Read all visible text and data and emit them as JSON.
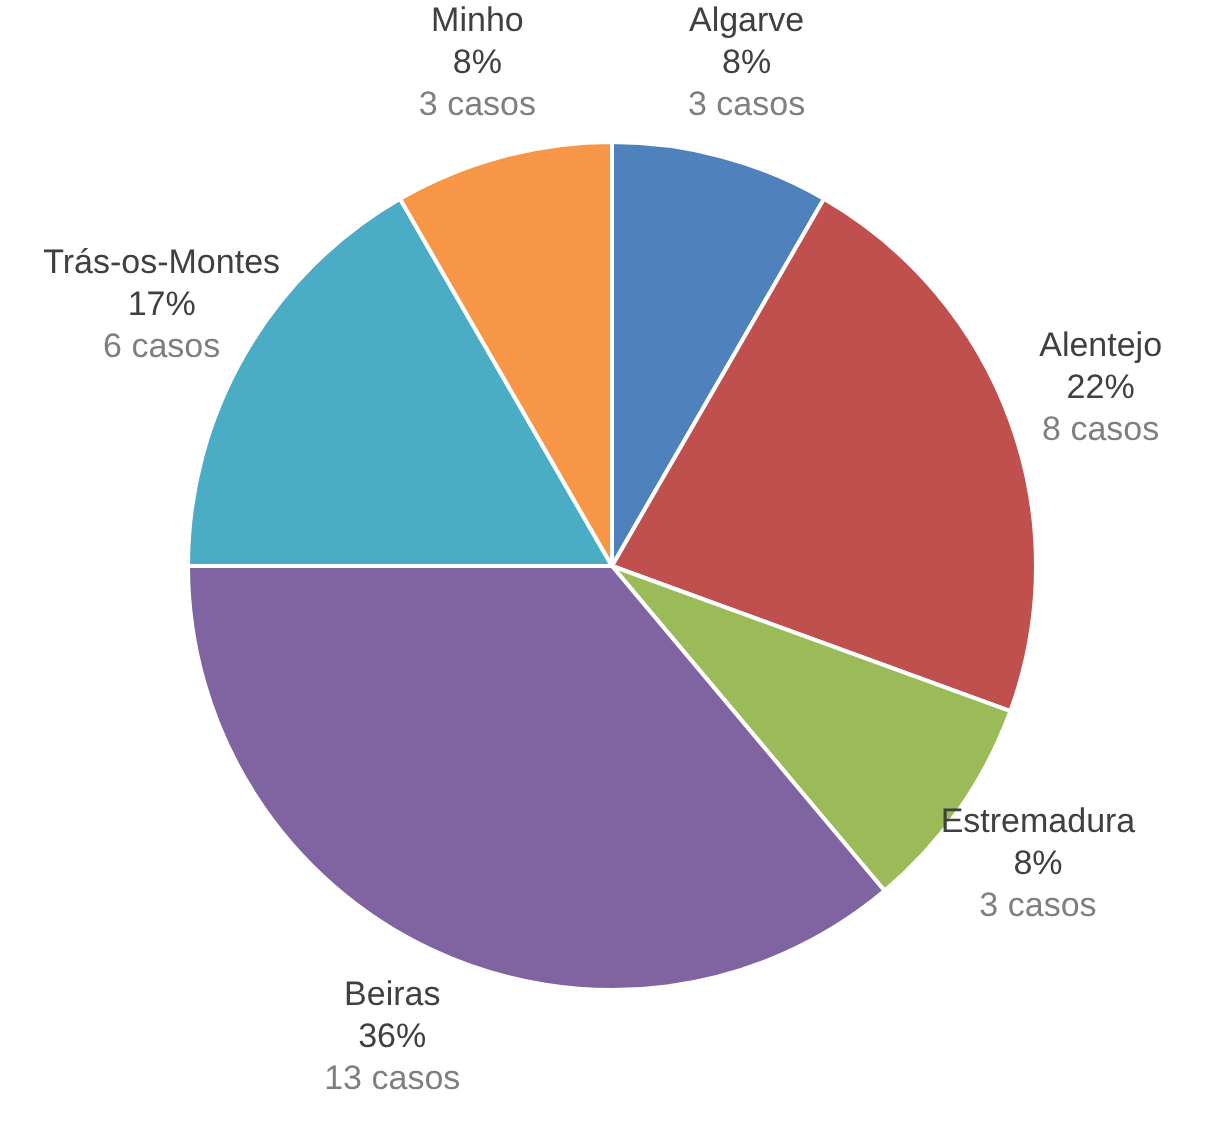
{
  "chart_data": {
    "type": "pie",
    "categories": [
      "Algarve",
      "Alentejo",
      "Estremadura",
      "Beiras",
      "Trás-os-Montes",
      "Minho"
    ],
    "values": [
      3,
      8,
      3,
      13,
      6,
      3
    ],
    "colors": [
      "#4f81bd",
      "#c0504d",
      "#9bbb59",
      "#8064a2",
      "#4bacc6",
      "#f79646"
    ],
    "value_labels": [
      "8%\n3 casos",
      "22%\n8 casos",
      "8%\n3 casos",
      "36%\n13 casos",
      "17%\n6 casos",
      "8%\n3 casos"
    ],
    "legend": false
  }
}
